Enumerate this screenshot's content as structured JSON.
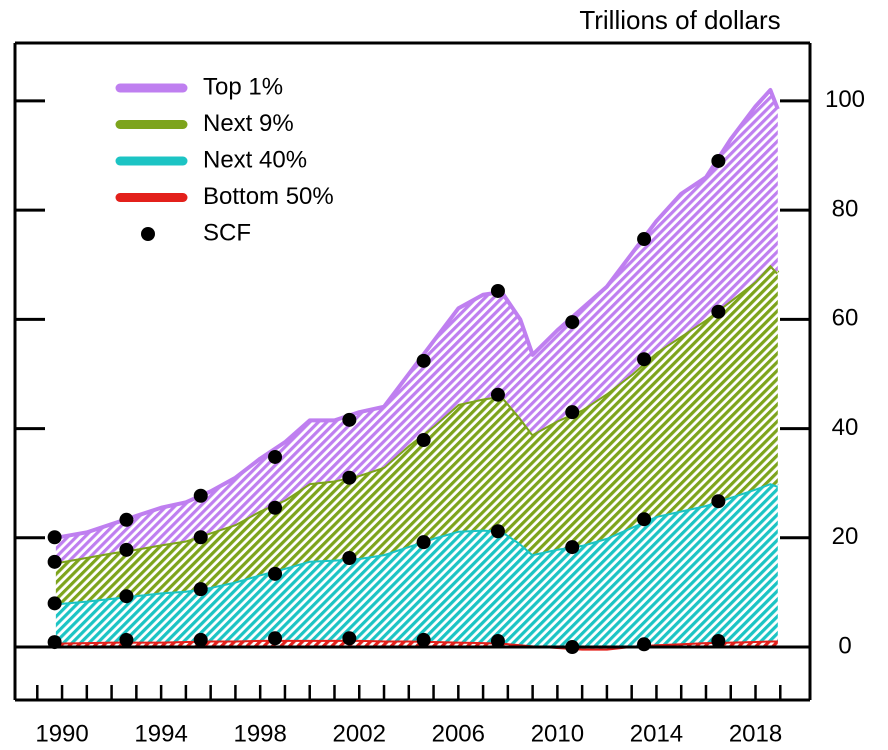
{
  "chart_data": {
    "type": "stacked_area",
    "title": "Trillions of dollars",
    "x": [
      1989.75,
      1991,
      1992,
      1993,
      1994,
      1995,
      1996,
      1997,
      1998,
      1999,
      2000,
      2001,
      2002,
      2003,
      2004,
      2005,
      2006,
      2007,
      2007.75,
      2008.5,
      2009,
      2010,
      2011,
      2012,
      2013,
      2014,
      2015,
      2016,
      2017,
      2018,
      2018.6,
      2018.9
    ],
    "series": [
      {
        "name": "Bottom 50%",
        "color": "#e3201b",
        "values": [
          0.8,
          0.9,
          1.0,
          1.0,
          1.0,
          1.1,
          1.2,
          1.2,
          1.3,
          1.3,
          1.3,
          1.3,
          1.3,
          1.2,
          1.2,
          1.1,
          1.0,
          0.9,
          0.8,
          0.5,
          0.3,
          0,
          -0.3,
          -0.3,
          0.2,
          0.5,
          0.7,
          0.9,
          1.0,
          1.1,
          1.2,
          1.2
        ]
      },
      {
        "name": "Next 40%",
        "color": "#1cc4c4",
        "values": [
          7.2,
          7.6,
          8,
          8.5,
          9,
          9.2,
          9.8,
          10.8,
          12,
          13.2,
          14.5,
          14.7,
          15,
          15.8,
          17.3,
          18.9,
          20.3,
          20.6,
          20.5,
          18.5,
          16.7,
          18,
          19,
          20.3,
          21.8,
          23.5,
          24.3,
          25.1,
          26.5,
          27.9,
          28.8,
          28.3
        ]
      },
      {
        "name": "Next 9%",
        "color": "#7da41c",
        "values": [
          7.5,
          8,
          8.3,
          8.5,
          8.8,
          9.2,
          10,
          10.5,
          11.7,
          12.5,
          14.2,
          14.5,
          15.2,
          16,
          18.5,
          20.5,
          23.2,
          24,
          24.7,
          23,
          22,
          23.5,
          24.8,
          26.5,
          28,
          30,
          32,
          34,
          36,
          38,
          40,
          39
        ]
      },
      {
        "name": "Top 1%",
        "color": "#bf7ff0",
        "values": [
          4.5,
          4.5,
          5.2,
          6,
          6.7,
          7,
          7.5,
          8.5,
          9.5,
          10.5,
          11.5,
          11,
          11.5,
          11,
          13,
          15.5,
          17.5,
          19,
          19,
          18,
          14.5,
          16.5,
          18.5,
          19.5,
          22,
          24,
          26,
          26,
          29.5,
          32,
          32,
          30
        ]
      }
    ],
    "scf": {
      "name": "SCF",
      "color": "#000000",
      "x": [
        1989.7,
        1992.6,
        1995.6,
        1998.6,
        2001.6,
        2004.6,
        2007.6,
        2010.6,
        2013.5,
        2016.5
      ],
      "values": [
        [
          0.9,
          7.1,
          7.6,
          4.5
        ],
        [
          1.3,
          8,
          8.5,
          5.5
        ],
        [
          1.3,
          9.3,
          9.5,
          7.6
        ],
        [
          1.6,
          11.8,
          12.1,
          9.3
        ],
        [
          1.6,
          14.7,
          14.7,
          10.6
        ],
        [
          1.3,
          17.9,
          18.7,
          14.5
        ],
        [
          1.1,
          20.1,
          25,
          19
        ],
        [
          0,
          18.3,
          24.7,
          16.5
        ],
        [
          0.5,
          22.9,
          29.3,
          22
        ],
        [
          1.1,
          25.6,
          34.7,
          27.6
        ]
      ]
    },
    "xlim": [
      1988.1,
      2020.2
    ],
    "ylim": [
      -9.7,
      110.6
    ],
    "xticks": [
      1990,
      1994,
      1998,
      2002,
      2006,
      2010,
      2014,
      2018
    ],
    "xminorticks": [
      1989,
      1990,
      1991,
      1992,
      1993,
      1994,
      1995,
      1996,
      1997,
      1998,
      1999,
      2000,
      2001,
      2002,
      2003,
      2004,
      2005,
      2006,
      2007,
      2008,
      2009,
      2010,
      2011,
      2012,
      2013,
      2014,
      2015,
      2016,
      2017,
      2018,
      2019
    ],
    "yticks": [
      0,
      20,
      40,
      60,
      80,
      100
    ],
    "hatched": true,
    "zero_line": true,
    "legend_position": "upper left"
  }
}
